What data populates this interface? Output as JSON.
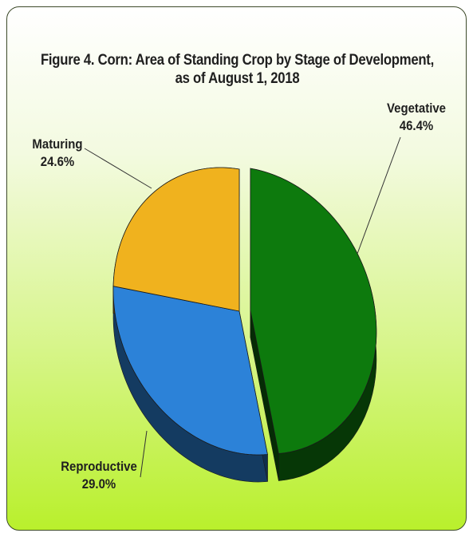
{
  "chart_data": {
    "type": "pie",
    "title_line1": "Figure 4. Corn:  Area of Standing Crop by Stage of Development,",
    "title_line2": "as of  August 1, 2018",
    "slices": [
      {
        "name": "Vegetative",
        "value": 46.4,
        "label": "46.4%",
        "color": "#0d7a0d"
      },
      {
        "name": "Reproductive",
        "value": 29.0,
        "label": "29.0%",
        "color": "#2c82d8"
      },
      {
        "name": "Maturing",
        "value": 24.6,
        "label": "24.6%",
        "color": "#f0b21e"
      }
    ],
    "exploded": "Vegetative",
    "legend": "none",
    "style": "3d"
  }
}
